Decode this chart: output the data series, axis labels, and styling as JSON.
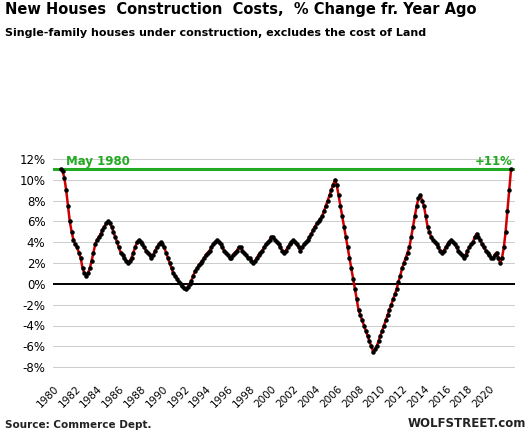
{
  "title": "New Houses  Construction  Costs,  % Change fr. Year Ago",
  "subtitle": "Single-family houses under construction, excludes the cost of Land",
  "source_left": "Source: Commerce Dept.",
  "source_right": "WOLFSTREET.com",
  "ref_label": "May 1980",
  "ref_value_label": "+11%",
  "ref_value": 11.0,
  "line_color": "#cc0000",
  "dot_color": "#000000",
  "ref_line_color": "#22aa22",
  "zero_line_color": "#000000",
  "background_color": "#ffffff",
  "grid_color": "#cccccc",
  "title_color": "#000000",
  "subtitle_color": "#000000",
  "ref_text_color": "#22aa22",
  "ylim": [
    -9,
    13.5
  ],
  "yticks": [
    -8,
    -6,
    -4,
    -2,
    0,
    2,
    4,
    6,
    8,
    10,
    12
  ],
  "years": [
    1980,
    1982,
    1984,
    1986,
    1988,
    1990,
    1992,
    1994,
    1996,
    1998,
    2000,
    2002,
    2004,
    2006,
    2008,
    2010,
    2012,
    2014,
    2016,
    2018,
    2020
  ],
  "data": [
    [
      1980.0,
      11.0
    ],
    [
      1980.17,
      10.8
    ],
    [
      1980.33,
      10.2
    ],
    [
      1980.5,
      9.0
    ],
    [
      1980.67,
      7.5
    ],
    [
      1980.83,
      6.0
    ],
    [
      1981.0,
      5.0
    ],
    [
      1981.17,
      4.2
    ],
    [
      1981.33,
      3.8
    ],
    [
      1981.5,
      3.5
    ],
    [
      1981.67,
      3.0
    ],
    [
      1981.83,
      2.5
    ],
    [
      1982.0,
      1.5
    ],
    [
      1982.17,
      1.0
    ],
    [
      1982.33,
      0.8
    ],
    [
      1982.5,
      1.0
    ],
    [
      1982.67,
      1.5
    ],
    [
      1982.83,
      2.2
    ],
    [
      1983.0,
      3.0
    ],
    [
      1983.17,
      3.8
    ],
    [
      1983.33,
      4.2
    ],
    [
      1983.5,
      4.5
    ],
    [
      1983.67,
      4.8
    ],
    [
      1983.83,
      5.2
    ],
    [
      1984.0,
      5.5
    ],
    [
      1984.17,
      5.8
    ],
    [
      1984.33,
      6.0
    ],
    [
      1984.5,
      5.8
    ],
    [
      1984.67,
      5.5
    ],
    [
      1984.83,
      5.0
    ],
    [
      1985.0,
      4.5
    ],
    [
      1985.17,
      4.0
    ],
    [
      1985.33,
      3.5
    ],
    [
      1985.5,
      3.0
    ],
    [
      1985.67,
      2.8
    ],
    [
      1985.83,
      2.5
    ],
    [
      1986.0,
      2.2
    ],
    [
      1986.17,
      2.0
    ],
    [
      1986.33,
      2.2
    ],
    [
      1986.5,
      2.5
    ],
    [
      1986.67,
      3.0
    ],
    [
      1986.83,
      3.5
    ],
    [
      1987.0,
      4.0
    ],
    [
      1987.17,
      4.2
    ],
    [
      1987.33,
      4.0
    ],
    [
      1987.5,
      3.8
    ],
    [
      1987.67,
      3.5
    ],
    [
      1987.83,
      3.2
    ],
    [
      1988.0,
      3.0
    ],
    [
      1988.17,
      2.8
    ],
    [
      1988.33,
      2.5
    ],
    [
      1988.5,
      2.8
    ],
    [
      1988.67,
      3.2
    ],
    [
      1988.83,
      3.5
    ],
    [
      1989.0,
      3.8
    ],
    [
      1989.17,
      4.0
    ],
    [
      1989.33,
      3.8
    ],
    [
      1989.5,
      3.5
    ],
    [
      1989.67,
      3.0
    ],
    [
      1989.83,
      2.5
    ],
    [
      1990.0,
      2.0
    ],
    [
      1990.17,
      1.5
    ],
    [
      1990.33,
      1.0
    ],
    [
      1990.5,
      0.8
    ],
    [
      1990.67,
      0.5
    ],
    [
      1990.83,
      0.2
    ],
    [
      1991.0,
      0.0
    ],
    [
      1991.17,
      -0.2
    ],
    [
      1991.33,
      -0.4
    ],
    [
      1991.5,
      -0.5
    ],
    [
      1991.67,
      -0.3
    ],
    [
      1991.83,
      0.0
    ],
    [
      1992.0,
      0.3
    ],
    [
      1992.17,
      0.8
    ],
    [
      1992.33,
      1.2
    ],
    [
      1992.5,
      1.5
    ],
    [
      1992.67,
      1.8
    ],
    [
      1992.83,
      2.0
    ],
    [
      1993.0,
      2.2
    ],
    [
      1993.17,
      2.5
    ],
    [
      1993.33,
      2.8
    ],
    [
      1993.5,
      3.0
    ],
    [
      1993.67,
      3.2
    ],
    [
      1993.83,
      3.5
    ],
    [
      1994.0,
      3.8
    ],
    [
      1994.17,
      4.0
    ],
    [
      1994.33,
      4.2
    ],
    [
      1994.5,
      4.0
    ],
    [
      1994.67,
      3.8
    ],
    [
      1994.83,
      3.5
    ],
    [
      1995.0,
      3.2
    ],
    [
      1995.17,
      3.0
    ],
    [
      1995.33,
      2.8
    ],
    [
      1995.5,
      2.5
    ],
    [
      1995.67,
      2.5
    ],
    [
      1995.83,
      2.8
    ],
    [
      1996.0,
      3.0
    ],
    [
      1996.17,
      3.2
    ],
    [
      1996.33,
      3.5
    ],
    [
      1996.5,
      3.5
    ],
    [
      1996.67,
      3.2
    ],
    [
      1996.83,
      3.0
    ],
    [
      1997.0,
      2.8
    ],
    [
      1997.17,
      2.5
    ],
    [
      1997.33,
      2.5
    ],
    [
      1997.5,
      2.2
    ],
    [
      1997.67,
      2.0
    ],
    [
      1997.83,
      2.2
    ],
    [
      1998.0,
      2.5
    ],
    [
      1998.17,
      2.8
    ],
    [
      1998.33,
      3.0
    ],
    [
      1998.5,
      3.2
    ],
    [
      1998.67,
      3.5
    ],
    [
      1998.83,
      3.8
    ],
    [
      1999.0,
      4.0
    ],
    [
      1999.17,
      4.2
    ],
    [
      1999.33,
      4.5
    ],
    [
      1999.5,
      4.5
    ],
    [
      1999.67,
      4.2
    ],
    [
      1999.83,
      4.0
    ],
    [
      2000.0,
      3.8
    ],
    [
      2000.17,
      3.5
    ],
    [
      2000.33,
      3.2
    ],
    [
      2000.5,
      3.0
    ],
    [
      2000.67,
      3.2
    ],
    [
      2000.83,
      3.5
    ],
    [
      2001.0,
      3.8
    ],
    [
      2001.17,
      4.0
    ],
    [
      2001.33,
      4.2
    ],
    [
      2001.5,
      4.0
    ],
    [
      2001.67,
      3.8
    ],
    [
      2001.83,
      3.5
    ],
    [
      2002.0,
      3.2
    ],
    [
      2002.17,
      3.5
    ],
    [
      2002.33,
      3.8
    ],
    [
      2002.5,
      4.0
    ],
    [
      2002.67,
      4.2
    ],
    [
      2002.83,
      4.5
    ],
    [
      2003.0,
      4.8
    ],
    [
      2003.17,
      5.2
    ],
    [
      2003.33,
      5.5
    ],
    [
      2003.5,
      5.8
    ],
    [
      2003.67,
      6.0
    ],
    [
      2003.83,
      6.2
    ],
    [
      2004.0,
      6.5
    ],
    [
      2004.17,
      7.0
    ],
    [
      2004.33,
      7.5
    ],
    [
      2004.5,
      8.0
    ],
    [
      2004.67,
      8.5
    ],
    [
      2004.83,
      9.0
    ],
    [
      2005.0,
      9.5
    ],
    [
      2005.17,
      10.0
    ],
    [
      2005.33,
      9.5
    ],
    [
      2005.5,
      8.5
    ],
    [
      2005.67,
      7.5
    ],
    [
      2005.83,
      6.5
    ],
    [
      2006.0,
      5.5
    ],
    [
      2006.17,
      4.5
    ],
    [
      2006.33,
      3.5
    ],
    [
      2006.5,
      2.5
    ],
    [
      2006.67,
      1.5
    ],
    [
      2006.83,
      0.5
    ],
    [
      2007.0,
      -0.5
    ],
    [
      2007.17,
      -1.5
    ],
    [
      2007.33,
      -2.5
    ],
    [
      2007.5,
      -3.0
    ],
    [
      2007.67,
      -3.5
    ],
    [
      2007.83,
      -4.0
    ],
    [
      2008.0,
      -4.5
    ],
    [
      2008.17,
      -5.0
    ],
    [
      2008.33,
      -5.5
    ],
    [
      2008.5,
      -6.0
    ],
    [
      2008.67,
      -6.5
    ],
    [
      2008.83,
      -6.3
    ],
    [
      2009.0,
      -6.0
    ],
    [
      2009.17,
      -5.5
    ],
    [
      2009.33,
      -5.0
    ],
    [
      2009.5,
      -4.5
    ],
    [
      2009.67,
      -4.0
    ],
    [
      2009.83,
      -3.5
    ],
    [
      2010.0,
      -3.0
    ],
    [
      2010.17,
      -2.5
    ],
    [
      2010.33,
      -2.0
    ],
    [
      2010.5,
      -1.5
    ],
    [
      2010.67,
      -1.0
    ],
    [
      2010.83,
      -0.5
    ],
    [
      2011.0,
      0.2
    ],
    [
      2011.17,
      0.8
    ],
    [
      2011.33,
      1.5
    ],
    [
      2011.5,
      2.0
    ],
    [
      2011.67,
      2.5
    ],
    [
      2011.83,
      3.0
    ],
    [
      2012.0,
      3.5
    ],
    [
      2012.17,
      4.5
    ],
    [
      2012.33,
      5.5
    ],
    [
      2012.5,
      6.5
    ],
    [
      2012.67,
      7.5
    ],
    [
      2012.83,
      8.2
    ],
    [
      2013.0,
      8.5
    ],
    [
      2013.17,
      8.0
    ],
    [
      2013.33,
      7.5
    ],
    [
      2013.5,
      6.5
    ],
    [
      2013.67,
      5.5
    ],
    [
      2013.83,
      5.0
    ],
    [
      2014.0,
      4.5
    ],
    [
      2014.17,
      4.2
    ],
    [
      2014.33,
      4.0
    ],
    [
      2014.5,
      3.8
    ],
    [
      2014.67,
      3.5
    ],
    [
      2014.83,
      3.2
    ],
    [
      2015.0,
      3.0
    ],
    [
      2015.17,
      3.2
    ],
    [
      2015.33,
      3.5
    ],
    [
      2015.5,
      3.8
    ],
    [
      2015.67,
      4.0
    ],
    [
      2015.83,
      4.2
    ],
    [
      2016.0,
      4.0
    ],
    [
      2016.17,
      3.8
    ],
    [
      2016.33,
      3.5
    ],
    [
      2016.5,
      3.2
    ],
    [
      2016.67,
      3.0
    ],
    [
      2016.83,
      2.8
    ],
    [
      2017.0,
      2.5
    ],
    [
      2017.17,
      2.8
    ],
    [
      2017.33,
      3.2
    ],
    [
      2017.5,
      3.5
    ],
    [
      2017.67,
      3.8
    ],
    [
      2017.83,
      4.0
    ],
    [
      2018.0,
      4.5
    ],
    [
      2018.17,
      4.8
    ],
    [
      2018.33,
      4.5
    ],
    [
      2018.5,
      4.2
    ],
    [
      2018.67,
      3.8
    ],
    [
      2018.83,
      3.5
    ],
    [
      2019.0,
      3.2
    ],
    [
      2019.17,
      3.0
    ],
    [
      2019.33,
      2.8
    ],
    [
      2019.5,
      2.5
    ],
    [
      2019.67,
      2.5
    ],
    [
      2019.83,
      2.8
    ],
    [
      2020.0,
      3.0
    ],
    [
      2020.17,
      2.5
    ],
    [
      2020.33,
      2.0
    ],
    [
      2020.5,
      2.5
    ],
    [
      2020.67,
      3.5
    ],
    [
      2020.83,
      5.0
    ],
    [
      2021.0,
      7.0
    ],
    [
      2021.17,
      9.0
    ],
    [
      2021.33,
      11.0
    ]
  ]
}
